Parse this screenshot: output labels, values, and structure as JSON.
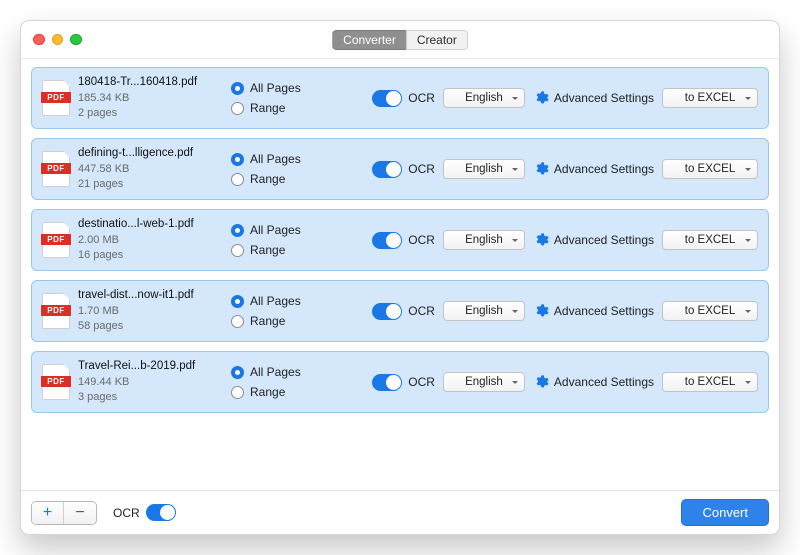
{
  "window": {
    "tabs": {
      "converter": "Converter",
      "creator": "Creator"
    },
    "active_tab": "converter"
  },
  "labels": {
    "all_pages": "All Pages",
    "range": "Range",
    "ocr": "OCR",
    "advanced": "Advanced Settings",
    "convert": "Convert",
    "pdf_badge": "PDF"
  },
  "defaults": {
    "language": "English",
    "format": "to EXCEL"
  },
  "files": [
    {
      "name": "180418-Tr...160418.pdf",
      "size": "185.34 KB",
      "pages": "2 pages"
    },
    {
      "name": "defining-t...lligence.pdf",
      "size": "447.58 KB",
      "pages": "21 pages"
    },
    {
      "name": "destinatio...l-web-1.pdf",
      "size": "2.00 MB",
      "pages": "16 pages"
    },
    {
      "name": "travel-dist...now-it1.pdf",
      "size": "1.70 MB",
      "pages": "58 pages"
    },
    {
      "name": "Travel-Rei...b-2019.pdf",
      "size": "149.44 KB",
      "pages": "3 pages"
    }
  ],
  "style": {
    "row_bg": "#d4e7fb",
    "row_border": "#9ac7ee",
    "accent": "#1a78e6",
    "pdf_red": "#d93025",
    "convert_bg": "#2f82ea"
  }
}
